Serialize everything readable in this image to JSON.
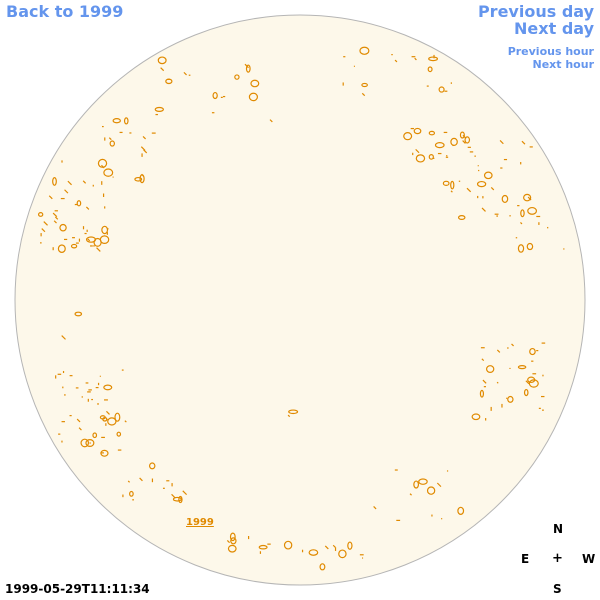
{
  "navigation": {
    "back_label": "Back to 1999",
    "previous_day": "Previous day",
    "next_day": "Next day",
    "previous_hour": "Previous hour",
    "next_hour": "Next hour"
  },
  "disk": {
    "year_label": "1999"
  },
  "compass": {
    "north": "N",
    "east": "E",
    "center": "+",
    "west": "W",
    "south": "S"
  },
  "timestamp": "1999-05-29T11:11:34",
  "colors": {
    "disk_fill": "#fdf8ea",
    "disk_border": "#b5b5b5",
    "contour": "#e08a00",
    "link": "#6495ed"
  }
}
